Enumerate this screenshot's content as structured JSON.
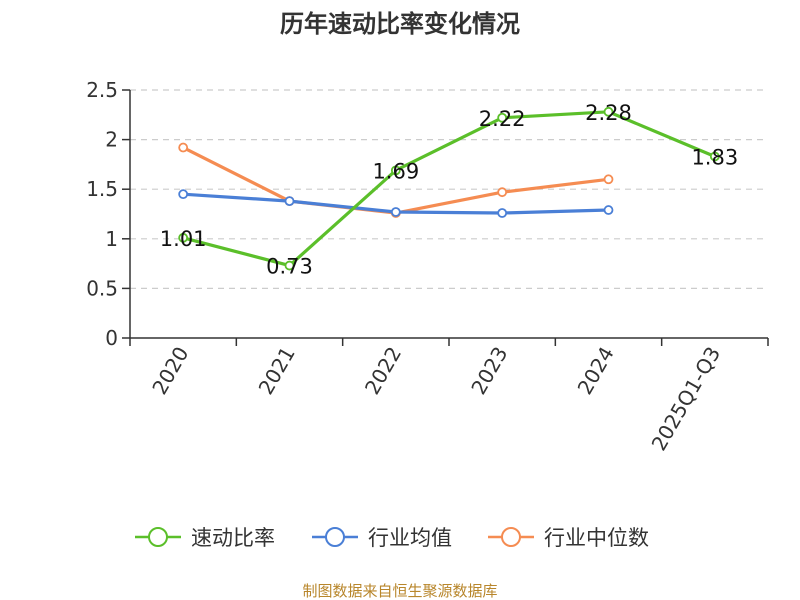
{
  "chart_data": {
    "type": "line",
    "title": "历年速动比率变化情况",
    "categories": [
      "2020",
      "2021",
      "2022",
      "2023",
      "2024",
      "2025Q1-Q3"
    ],
    "ylim": [
      0,
      2.5
    ],
    "yticks": [
      "0",
      "0.5",
      "1",
      "1.5",
      "2",
      "2.5"
    ],
    "grid": true,
    "legend_position": "bottom",
    "series": [
      {
        "name": "速动比率",
        "color": "#5bbf2a",
        "labels": true,
        "values": [
          1.01,
          0.73,
          1.69,
          2.22,
          2.28,
          1.83
        ],
        "value_labels": [
          "1.01",
          "0.73",
          "1.69",
          "2.22",
          "2.28",
          "1.83"
        ]
      },
      {
        "name": "行业均值",
        "color": "#4a7fd6",
        "labels": false,
        "values": [
          1.45,
          1.38,
          1.27,
          1.26,
          1.29,
          null
        ]
      },
      {
        "name": "行业中位数",
        "color": "#f58c52",
        "labels": false,
        "values": [
          1.92,
          1.38,
          1.26,
          1.47,
          1.6,
          null
        ]
      }
    ]
  },
  "footer": "制图数据来自恒生聚源数据库"
}
